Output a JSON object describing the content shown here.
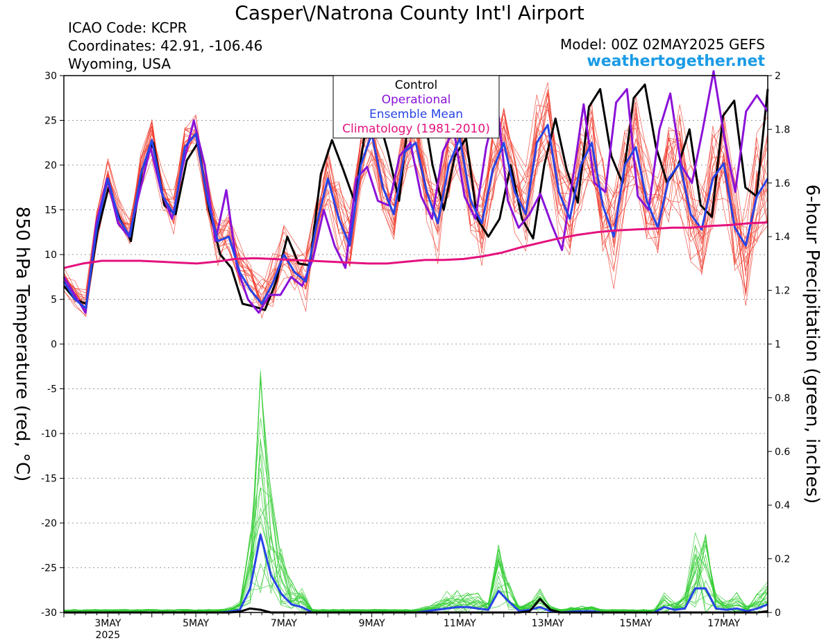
{
  "header": {
    "title": "Casper\\/Natrona County Int'l Airport",
    "icao": "ICAO Code: KCPR",
    "coords": "Coordinates: 42.91, -106.46",
    "region": "Wyoming, USA",
    "model": "Model: 00Z 02MAY2025 GEFS",
    "brand": "weathertogether.net"
  },
  "chart_data": {
    "type": "line",
    "title": "Casper\\/Natrona County Int'l Airport",
    "ylabel_left": "850 hPa Temperature (red, °C)",
    "ylabel_right": "6-hour Precipitation (green, inches)",
    "ylim_left": [
      -30,
      30
    ],
    "ylim_right": [
      0,
      2
    ],
    "yticks_left": [
      "30",
      "25",
      "20",
      "15",
      "10",
      "5",
      "0",
      "-5",
      "-10",
      "-15",
      "-20",
      "-25",
      "-30"
    ],
    "yticks_right": [
      "2",
      "1.8",
      "1.6",
      "1.4",
      "1.2",
      "1",
      "0.8",
      "0.6",
      "0.4",
      "0.2",
      "0"
    ],
    "x_labels": [
      {
        "label": "3MAY",
        "sub": "2025",
        "day": 3
      },
      {
        "label": "5MAY",
        "day": 5
      },
      {
        "label": "7MAY",
        "day": 7
      },
      {
        "label": "9MAY",
        "day": 9
      },
      {
        "label": "11MAY",
        "day": 11
      },
      {
        "label": "13MAY",
        "day": 13
      },
      {
        "label": "15MAY",
        "day": 15
      },
      {
        "label": "17MAY",
        "day": 17
      }
    ],
    "xlim_days": [
      2.0,
      18.0
    ],
    "grid": "dotted horizontal",
    "legend_position": "top-center",
    "legend": [
      {
        "name": "Control",
        "color": "#000000"
      },
      {
        "name": "Operational",
        "color": "#8a12d8"
      },
      {
        "name": "Ensemble Mean",
        "color": "#2744e6"
      },
      {
        "name": "Climatology (1981-2010)",
        "color": "#e4117e"
      }
    ],
    "colors": {
      "members": "#ef3a2a",
      "precip_members": "#32cc32",
      "control": "#000000",
      "operational": "#8a12d8",
      "mean": "#2744e6",
      "climatology": "#e4117e"
    },
    "temperature_series": [
      {
        "name": "Control",
        "values": [
          6.5,
          5.0,
          4.5,
          12.5,
          17.5,
          14.0,
          11.5,
          19.5,
          22.5,
          15.5,
          14.5,
          20.5,
          22.5,
          15.0,
          10.0,
          8.5,
          4.5,
          4.2,
          3.8,
          7.0,
          12.0,
          9.0,
          8.8,
          19.0,
          22.8,
          19.5,
          16.0,
          24.0,
          26.0,
          21.5,
          16.0,
          27.0,
          27.5,
          20.0,
          15.0,
          21.0,
          23.0,
          14.0,
          12.0,
          14.0,
          20.0,
          14.0,
          11.8,
          20.0,
          25.2,
          19.5,
          15.8,
          26.5,
          28.5,
          21.0,
          18.0,
          27.5,
          29.0,
          22.0,
          18.0,
          20.0,
          24.0,
          15.5,
          14.2,
          25.5,
          27.2,
          17.5,
          16.5,
          28.5
        ]
      },
      {
        "name": "Operational",
        "values": [
          7.5,
          5.5,
          3.5,
          13.5,
          18.5,
          13.5,
          12.0,
          17.0,
          22.0,
          17.0,
          14.0,
          20.0,
          25.0,
          20.0,
          11.5,
          17.2,
          8.5,
          5.0,
          3.5,
          5.5,
          5.5,
          7.5,
          6.5,
          9.5,
          15.0,
          11.0,
          8.5,
          18.5,
          19.8,
          16.0,
          15.5,
          21.0,
          22.5,
          16.5,
          14.0,
          21.5,
          24.0,
          16.5,
          14.0,
          22.0,
          27.0,
          16.0,
          13.0,
          14.5,
          16.8,
          13.5,
          10.5,
          18.5,
          26.8,
          18.0,
          17.0,
          27.0,
          28.5,
          16.5,
          15.0,
          24.0,
          28.0,
          20.0,
          18.0,
          24.0,
          30.5,
          23.0,
          17.0,
          26.0,
          27.8,
          26.0
        ]
      },
      {
        "name": "Ensemble Mean",
        "values": [
          7.0,
          5.0,
          4.0,
          13.0,
          18.5,
          14.0,
          12.0,
          19.0,
          22.8,
          16.5,
          14.5,
          22.0,
          23.5,
          16.5,
          11.5,
          12.0,
          8.0,
          6.0,
          4.5,
          6.8,
          10.0,
          8.0,
          7.0,
          13.5,
          18.5,
          14.0,
          11.0,
          20.0,
          23.5,
          17.5,
          14.5,
          21.5,
          22.5,
          17.0,
          13.5,
          20.0,
          23.0,
          16.0,
          13.5,
          19.5,
          22.5,
          17.0,
          14.5,
          22.5,
          24.5,
          17.0,
          14.0,
          20.0,
          22.5,
          15.5,
          12.0,
          20.0,
          22.0,
          16.0,
          13.0,
          18.5,
          20.2,
          14.5,
          12.8,
          18.5,
          20.2,
          13.0,
          11.0,
          16.5,
          18.5
        ]
      },
      {
        "name": "Climatology (1981-2010)",
        "values": [
          8.5,
          9.0,
          9.3,
          9.3,
          9.3,
          9.2,
          9.1,
          9.0,
          9.2,
          9.5,
          9.6,
          9.5,
          9.4,
          9.3,
          9.2,
          9.1,
          9.0,
          9.0,
          9.2,
          9.4,
          9.4,
          9.5,
          9.8,
          10.2,
          10.8,
          11.3,
          11.8,
          12.2,
          12.5,
          12.7,
          12.8,
          12.9,
          13.0,
          13.0,
          13.2,
          13.3,
          13.5,
          13.6
        ]
      }
    ],
    "precip_series": [
      {
        "name": "Ensemble Mean",
        "values": [
          0,
          0,
          0,
          0,
          0,
          0,
          0,
          0,
          0,
          0,
          0,
          0,
          0,
          0,
          0,
          0,
          0.003,
          0.01,
          0.09,
          0.29,
          0.14,
          0.07,
          0.03,
          0.02,
          0,
          0,
          0,
          0,
          0,
          0,
          0,
          0,
          0,
          0,
          0,
          0.005,
          0.01,
          0.015,
          0.02,
          0.02,
          0.015,
          0.01,
          0.08,
          0.04,
          0.005,
          0.01,
          0.02,
          0.005,
          0,
          0.003,
          0.005,
          0.005,
          0,
          0,
          0,
          0,
          0,
          0,
          0.02,
          0.01,
          0.015,
          0.09,
          0.09,
          0.015,
          0.01,
          0.015,
          0.005,
          0.015,
          0.03
        ]
      },
      {
        "name": "Control",
        "values": [
          0,
          0,
          0,
          0,
          0,
          0,
          0,
          0,
          0,
          0,
          0,
          0,
          0,
          0,
          0,
          0,
          0,
          0.003,
          0.015,
          0.01,
          0,
          0,
          0,
          0,
          0,
          0,
          0,
          0,
          0,
          0,
          0,
          0,
          0,
          0,
          0,
          0,
          0,
          0,
          0,
          0,
          0,
          0,
          0,
          0,
          0,
          0.005,
          0.05,
          0.01,
          0,
          0,
          0,
          0,
          0,
          0,
          0,
          0,
          0,
          0,
          0,
          0,
          0,
          0,
          0,
          0,
          0,
          0,
          0,
          0,
          0.005
        ]
      }
    ]
  }
}
